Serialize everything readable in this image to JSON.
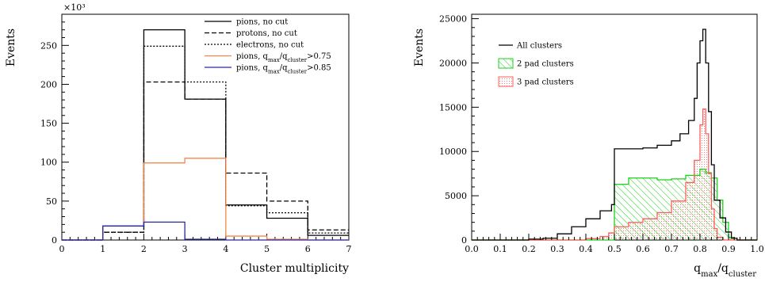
{
  "chart_data": [
    {
      "type": "histogram",
      "xlabel": "Cluster multiplicity",
      "ylabel": "Events",
      "y_multiplier_label": "×10³",
      "xlim": [
        0,
        7
      ],
      "ylim": [
        0,
        290
      ],
      "xticks": [
        "0",
        "1",
        "2",
        "3",
        "4",
        "5",
        "6",
        "7"
      ],
      "yticks": [
        "0",
        "50",
        "100",
        "150",
        "200",
        "250"
      ],
      "bin_edges": [
        0,
        1,
        2,
        3,
        4,
        5,
        6,
        7
      ],
      "legend_placement": "top-right",
      "series": [
        {
          "name": "pions, no cut",
          "color": "#000000",
          "dash": "solid",
          "values": [
            0,
            18,
            270,
            181,
            45,
            28,
            6
          ]
        },
        {
          "name": "protons, no cut",
          "color": "#000000",
          "dash": "dashed",
          "values": [
            0,
            10,
            203,
            181,
            86,
            50,
            13
          ]
        },
        {
          "name": "electrons, no cut",
          "color": "#000000",
          "dash": "dotted",
          "values": [
            0,
            10,
            249,
            203,
            44,
            35,
            9
          ]
        },
        {
          "name": "pions, q_max/q_cluster>0.75",
          "color": "#f4874b",
          "dash": "solid",
          "values": [
            0,
            18,
            99,
            105,
            5,
            1,
            0
          ]
        },
        {
          "name": "pions, q_max/q_cluster>0.85",
          "color": "#2a2aa0",
          "dash": "solid",
          "values": [
            0,
            18,
            23,
            1,
            0,
            0,
            0
          ]
        }
      ]
    },
    {
      "type": "histogram",
      "xlabel": "q_max/q_cluster",
      "ylabel": "Events",
      "xlim": [
        0,
        1.0
      ],
      "ylim": [
        0,
        25500
      ],
      "xticks": [
        "0.0",
        "0.1",
        "0.2",
        "0.3",
        "0.4",
        "0.5",
        "0.6",
        "0.7",
        "0.8",
        "0.9",
        "1.0"
      ],
      "yticks": [
        "0",
        "5000",
        "10000",
        "15000",
        "20000",
        "25000"
      ],
      "legend_placement": "top-left",
      "series": [
        {
          "name": "All clusters",
          "color": "#000000",
          "fill": "none",
          "points": [
            [
              0.0,
              0
            ],
            [
              0.1,
              0
            ],
            [
              0.2,
              100
            ],
            [
              0.25,
              200
            ],
            [
              0.3,
              700
            ],
            [
              0.35,
              1500
            ],
            [
              0.4,
              2400
            ],
            [
              0.45,
              3300
            ],
            [
              0.49,
              4000
            ],
            [
              0.5,
              10300
            ],
            [
              0.55,
              10300
            ],
            [
              0.6,
              10400
            ],
            [
              0.65,
              10700
            ],
            [
              0.7,
              11200
            ],
            [
              0.73,
              12000
            ],
            [
              0.76,
              13500
            ],
            [
              0.78,
              16000
            ],
            [
              0.79,
              20000
            ],
            [
              0.8,
              22500
            ],
            [
              0.81,
              23800
            ],
            [
              0.82,
              20000
            ],
            [
              0.83,
              14500
            ],
            [
              0.84,
              8500
            ],
            [
              0.85,
              4500
            ],
            [
              0.87,
              2500
            ],
            [
              0.89,
              900
            ],
            [
              0.91,
              200
            ],
            [
              0.93,
              0
            ],
            [
              1.0,
              0
            ]
          ]
        },
        {
          "name": "2 pad clusters",
          "color": "#1ad11a",
          "fill": "hatch",
          "points": [
            [
              0.0,
              0
            ],
            [
              0.49,
              0
            ],
            [
              0.5,
              6300
            ],
            [
              0.55,
              7000
            ],
            [
              0.6,
              7000
            ],
            [
              0.65,
              6800
            ],
            [
              0.7,
              6900
            ],
            [
              0.75,
              7300
            ],
            [
              0.8,
              8000
            ],
            [
              0.82,
              7600
            ],
            [
              0.84,
              7000
            ],
            [
              0.86,
              4500
            ],
            [
              0.88,
              2000
            ],
            [
              0.9,
              300
            ],
            [
              0.92,
              0
            ],
            [
              1.0,
              0
            ]
          ]
        },
        {
          "name": "3 pad clusters",
          "color": "#ff5c5c",
          "fill": "dots",
          "points": [
            [
              0.0,
              0
            ],
            [
              0.35,
              0
            ],
            [
              0.4,
              150
            ],
            [
              0.45,
              400
            ],
            [
              0.48,
              800
            ],
            [
              0.5,
              1500
            ],
            [
              0.55,
              2000
            ],
            [
              0.6,
              2400
            ],
            [
              0.65,
              3100
            ],
            [
              0.7,
              4400
            ],
            [
              0.75,
              6500
            ],
            [
              0.78,
              9000
            ],
            [
              0.8,
              13000
            ],
            [
              0.81,
              14800
            ],
            [
              0.82,
              12000
            ],
            [
              0.83,
              7500
            ],
            [
              0.84,
              3500
            ],
            [
              0.85,
              1300
            ],
            [
              0.86,
              300
            ],
            [
              0.88,
              0
            ],
            [
              1.0,
              0
            ]
          ]
        }
      ]
    }
  ]
}
